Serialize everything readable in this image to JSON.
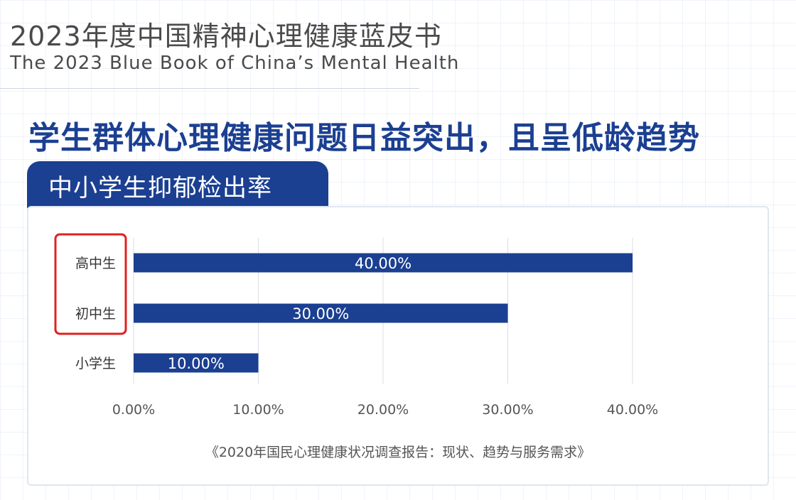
{
  "header": {
    "title": "2023年度中国精神心理健康蓝皮书",
    "subtitle": "The 2023 Blue Book of China’s Mental Health"
  },
  "headline": "学生群体心理健康问题日益突出，且呈低龄趋势",
  "tab_label": "中小学生抑郁检出率",
  "source": "《2020年国民心理健康状况调查报告：现状、趋势与服务需求》",
  "colors": {
    "bar": "#1b3f91",
    "highlight": "#e02020",
    "grid": "#d9dde3"
  },
  "chart_data": {
    "type": "bar",
    "orientation": "horizontal",
    "title": "中小学生抑郁检出率",
    "categories": [
      "高中生",
      "初中生",
      "小学生"
    ],
    "values": [
      40.0,
      30.0,
      10.0
    ],
    "value_labels": [
      "40.00%",
      "30.00%",
      "10.00%"
    ],
    "xlim": [
      0,
      40
    ],
    "xticks": [
      0,
      10,
      20,
      30,
      40
    ],
    "xtick_labels": [
      "0.00%",
      "10.00%",
      "20.00%",
      "30.00%",
      "40.00%"
    ],
    "grid": true,
    "highlighted_categories": [
      "高中生",
      "初中生"
    ]
  }
}
